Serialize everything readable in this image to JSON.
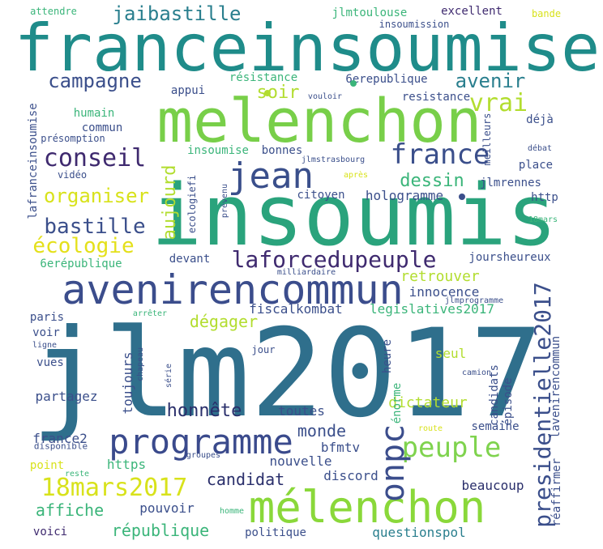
{
  "words": [
    {
      "text": "jlm2017",
      "color": "#2f6f8c",
      "weight": "xl"
    },
    {
      "text": "insoumis",
      "color": "#2aa37c",
      "weight": "xl"
    },
    {
      "text": "franceinsoumise",
      "color": "#1f8c8a",
      "weight": "xl"
    },
    {
      "text": "melenchon",
      "color": "#78cf49",
      "weight": "xl"
    },
    {
      "text": "avenirencommun",
      "color": "#3b4d8c",
      "weight": "l"
    },
    {
      "text": "mélenchon",
      "color": "#8ad83a",
      "weight": "l"
    },
    {
      "text": "programme",
      "color": "#3a4a8c",
      "weight": "l"
    },
    {
      "text": "jean",
      "color": "#3a4f8b",
      "weight": "l"
    },
    {
      "text": "france",
      "color": "#3b4f8b",
      "weight": "m"
    },
    {
      "text": "presidentielle2017",
      "color": "#3b4f8b",
      "weight": "m"
    },
    {
      "text": "18mars2017",
      "color": "#d8e21b",
      "weight": "m"
    },
    {
      "text": "laforcedupeuple",
      "color": "#3f2a6f",
      "weight": "m"
    },
    {
      "text": "peuple",
      "color": "#7fd34e",
      "weight": "m"
    },
    {
      "text": "onpc",
      "color": "#3b4d8c",
      "weight": "m"
    },
    {
      "text": "conseil",
      "color": "#3f2a6f",
      "weight": "m"
    },
    {
      "text": "écologie",
      "color": "#e4e01b",
      "weight": "m"
    },
    {
      "text": "bastille",
      "color": "#3b4f8b",
      "weight": "m"
    },
    {
      "text": "vrai",
      "color": "#b2dd2f",
      "weight": "m"
    },
    {
      "text": "organiser",
      "color": "#d8e21b",
      "weight": "m"
    },
    {
      "text": "campagne",
      "color": "#3b4f8b",
      "weight": "m"
    },
    {
      "text": "jaibastille",
      "color": "#2a7f8e",
      "weight": "m"
    },
    {
      "text": "avenir",
      "color": "#2a7f8e",
      "weight": "m"
    },
    {
      "text": "soir",
      "color": "#b2dd2f",
      "weight": "m"
    },
    {
      "text": "dessin",
      "color": "#3bb57a",
      "weight": "m"
    },
    {
      "text": "aujourd",
      "color": "#b2dd2f",
      "weight": "m"
    },
    {
      "text": "hologramme",
      "color": "#3b4f8b",
      "weight": "s"
    },
    {
      "text": "dégager",
      "color": "#b2dd2f",
      "weight": "m"
    },
    {
      "text": "honnête",
      "color": "#2a2f6b",
      "weight": "m"
    },
    {
      "text": "affiche",
      "color": "#3bb57a",
      "weight": "m"
    },
    {
      "text": "république",
      "color": "#3bb57a",
      "weight": "m"
    },
    {
      "text": "monde",
      "color": "#3b4f8b",
      "weight": "m"
    },
    {
      "text": "candidat",
      "color": "#2a2f6b",
      "weight": "m"
    },
    {
      "text": "pouvoir",
      "color": "#3b4f8b",
      "weight": "s"
    },
    {
      "text": "questionspol",
      "color": "#2a7f8e",
      "weight": "s"
    },
    {
      "text": "dictateur",
      "color": "#b2dd2f",
      "weight": "m"
    },
    {
      "text": "lavenirencommun",
      "color": "#3b4f8b",
      "weight": "s"
    },
    {
      "text": "retrouver",
      "color": "#b2dd2f",
      "weight": "s"
    },
    {
      "text": "innocence",
      "color": "#3b4f8b",
      "weight": "s"
    },
    {
      "text": "legislatives2017",
      "color": "#3bb57a",
      "weight": "s"
    },
    {
      "text": "fiscalkombat",
      "color": "#3b4f8b",
      "weight": "s"
    },
    {
      "text": "nouvelle",
      "color": "#3b4f8b",
      "weight": "s"
    },
    {
      "text": "discord",
      "color": "#3b4f8b",
      "weight": "s"
    },
    {
      "text": "beaucoup",
      "color": "#2a2f6b",
      "weight": "s"
    },
    {
      "text": "bfmtv",
      "color": "#3b4f8b",
      "weight": "s"
    },
    {
      "text": "candidats",
      "color": "#3b4f8b",
      "weight": "s"
    },
    {
      "text": "épisode",
      "color": "#3b4f8b",
      "weight": "s"
    },
    {
      "text": "énorme",
      "color": "#3bb57a",
      "weight": "s"
    },
    {
      "text": "heure",
      "color": "#3b4f8b",
      "weight": "s"
    },
    {
      "text": "seul",
      "color": "#b2dd2f",
      "weight": "s"
    },
    {
      "text": "semaine",
      "color": "#3b4f8b",
      "weight": "s"
    },
    {
      "text": "réaffirmer",
      "color": "#3b4f8b",
      "weight": "s"
    },
    {
      "text": "toutes",
      "color": "#3b4f8b",
      "weight": "s"
    },
    {
      "text": "toujours",
      "color": "#3b4f8b",
      "weight": "s"
    },
    {
      "text": "https",
      "color": "#3bb57a",
      "weight": "s"
    },
    {
      "text": "france2",
      "color": "#3b4f8b",
      "weight": "s"
    },
    {
      "text": "point",
      "color": "#d8e21b",
      "weight": "s"
    },
    {
      "text": "partagez",
      "color": "#3b4f8b",
      "weight": "s"
    },
    {
      "text": "vues",
      "color": "#3b4f8b",
      "weight": "s"
    },
    {
      "text": "voir",
      "color": "#3b4f8b",
      "weight": "s"
    },
    {
      "text": "paris",
      "color": "#3b4f8b",
      "weight": "s"
    },
    {
      "text": "voici",
      "color": "#3f2a6f",
      "weight": "s"
    },
    {
      "text": "politique",
      "color": "#3b4f8b",
      "weight": "s"
    },
    {
      "text": "devant",
      "color": "#3b4f8b",
      "weight": "s"
    },
    {
      "text": "6erépublique",
      "color": "#3bb57a",
      "weight": "s"
    },
    {
      "text": "joursheureux",
      "color": "#3b4f8b",
      "weight": "s"
    },
    {
      "text": "citoyen",
      "color": "#3b4f8b",
      "weight": "s"
    },
    {
      "text": "bonnes",
      "color": "#3b4f8b",
      "weight": "s"
    },
    {
      "text": "insoumise",
      "color": "#3bb57a",
      "weight": "s"
    },
    {
      "text": "jlmrennes",
      "color": "#3b4f8b",
      "weight": "s"
    },
    {
      "text": "place",
      "color": "#3b4f8b",
      "weight": "s"
    },
    {
      "text": "http",
      "color": "#3b4f8b",
      "weight": "s"
    },
    {
      "text": "déjà",
      "color": "#3b4f8b",
      "weight": "s"
    },
    {
      "text": "commun",
      "color": "#3b4f8b",
      "weight": "s"
    },
    {
      "text": "humain",
      "color": "#3bb57a",
      "weight": "s"
    },
    {
      "text": "appui",
      "color": "#3b4f8b",
      "weight": "s"
    },
    {
      "text": "résistance",
      "color": "#3bb57a",
      "weight": "s"
    },
    {
      "text": "6erepublique",
      "color": "#3b4f8b",
      "weight": "s"
    },
    {
      "text": "resistance",
      "color": "#3b4f8b",
      "weight": "s"
    },
    {
      "text": "jlmtoulouse",
      "color": "#3bb57a",
      "weight": "s"
    },
    {
      "text": "excellent",
      "color": "#3f2a6f",
      "weight": "s"
    },
    {
      "text": "insoumission",
      "color": "#3b4f8b",
      "weight": "xs"
    },
    {
      "text": "bande",
      "color": "#d8e21b",
      "weight": "xs"
    },
    {
      "text": "attendre",
      "color": "#3bb57a",
      "weight": "xs"
    },
    {
      "text": "lafranceinsoumise",
      "color": "#3b4f8b",
      "weight": "s"
    },
    {
      "text": "présomption",
      "color": "#3b4f8b",
      "weight": "xs"
    },
    {
      "text": "vidéo",
      "color": "#3b4f8b",
      "weight": "xs"
    },
    {
      "text": "ecologiefi",
      "color": "#3b4f8b",
      "weight": "xs"
    },
    {
      "text": "meilleurs",
      "color": "#3b4f8b",
      "weight": "xs"
    },
    {
      "text": "vouloir",
      "color": "#3b4f8b",
      "weight": "xs"
    },
    {
      "text": "jlmstrasbourg",
      "color": "#3b4f8b",
      "weight": "xs"
    },
    {
      "text": "après",
      "color": "#d8e21b",
      "weight": "xs"
    },
    {
      "text": "prévenu",
      "color": "#3b4f8b",
      "weight": "xs"
    },
    {
      "text": "débat",
      "color": "#3b4f8b",
      "weight": "xs"
    },
    {
      "text": "18mars",
      "color": "#3bb57a",
      "weight": "xs"
    },
    {
      "text": "milliardaire",
      "color": "#3b4f8b",
      "weight": "xs"
    },
    {
      "text": "jlmprogramme",
      "color": "#3b4f8b",
      "weight": "xs"
    },
    {
      "text": "arrêter",
      "color": "#3bb57a",
      "weight": "xs"
    },
    {
      "text": "ligne",
      "color": "#3b4f8b",
      "weight": "xs"
    },
    {
      "text": "chapeau",
      "color": "#3b4f8b",
      "weight": "xs"
    },
    {
      "text": "série",
      "color": "#3b4f8b",
      "weight": "xs"
    },
    {
      "text": "jour",
      "color": "#3b4f8b",
      "weight": "xs"
    },
    {
      "text": "camion",
      "color": "#3b4f8b",
      "weight": "xs"
    },
    {
      "text": "route",
      "color": "#d8e21b",
      "weight": "xs"
    },
    {
      "text": "disponible",
      "color": "#3b4f8b",
      "weight": "xs"
    },
    {
      "text": "groupes",
      "color": "#3b4f8b",
      "weight": "xs"
    },
    {
      "text": "reste",
      "color": "#3bb57a",
      "weight": "xs"
    },
    {
      "text": "homme",
      "color": "#3bb57a",
      "weight": "xs"
    }
  ]
}
